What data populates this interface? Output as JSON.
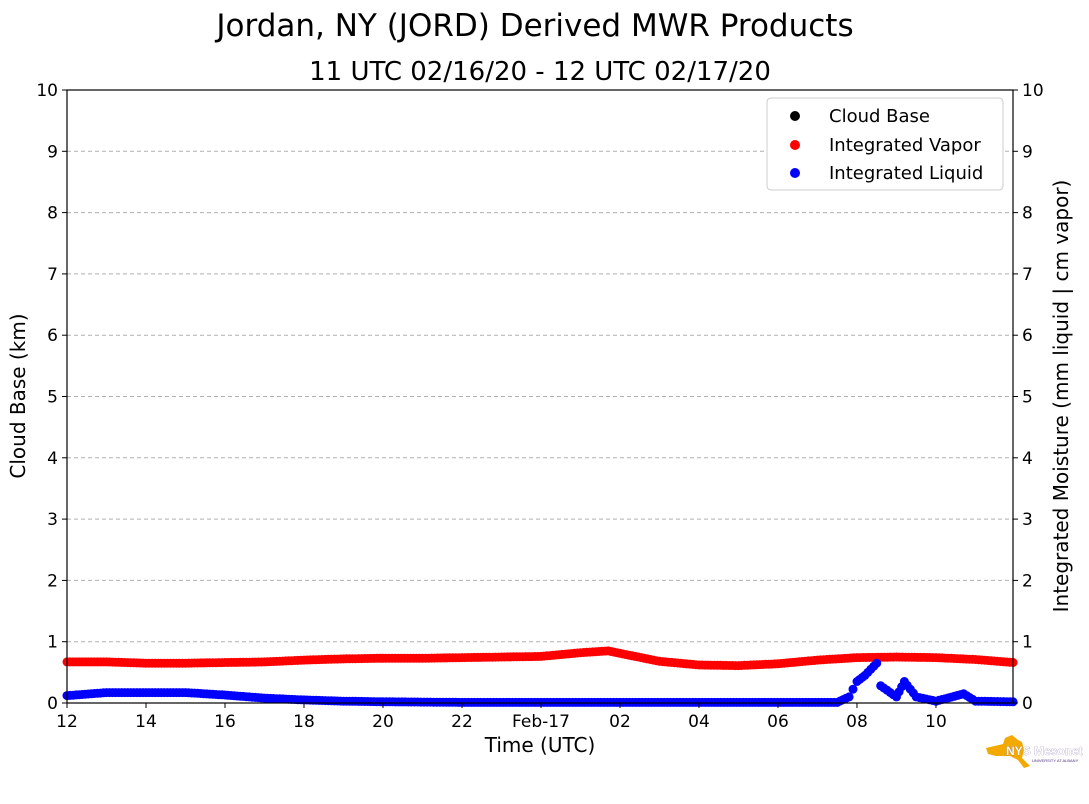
{
  "chart_data": {
    "type": "scatter",
    "title": "Jordan, NY (JORD) Derived MWR Products",
    "subtitle": "11 UTC 02/16/20 - 12 UTC 02/17/20",
    "xlabel": "Time (UTC)",
    "ylabel_left": "Cloud Base (km)",
    "ylabel_right": "Integrated Moisture (mm liquid | cm vapor)",
    "xlim_hours": [
      12,
      35.95
    ],
    "ylim": [
      0,
      10
    ],
    "grid": "horizontal dashed",
    "legend_position": "top-right",
    "x_ticks": [
      {
        "hour": 12,
        "label": "12"
      },
      {
        "hour": 14,
        "label": "14"
      },
      {
        "hour": 16,
        "label": "16"
      },
      {
        "hour": 18,
        "label": "18"
      },
      {
        "hour": 20,
        "label": "20"
      },
      {
        "hour": 22,
        "label": "22"
      },
      {
        "hour": 24,
        "label": "Feb-17"
      },
      {
        "hour": 26,
        "label": "02"
      },
      {
        "hour": 28,
        "label": "04"
      },
      {
        "hour": 30,
        "label": "06"
      },
      {
        "hour": 32,
        "label": "08"
      },
      {
        "hour": 34,
        "label": "10"
      }
    ],
    "y_ticks": [
      "0",
      "1",
      "2",
      "3",
      "4",
      "5",
      "6",
      "7",
      "8",
      "9",
      "10"
    ],
    "series": [
      {
        "name": "Cloud Base",
        "color": "#000000",
        "points": []
      },
      {
        "name": "Integrated Vapor",
        "color": "#ff0000",
        "points": [
          [
            12,
            0.67
          ],
          [
            13,
            0.67
          ],
          [
            14,
            0.65
          ],
          [
            15,
            0.65
          ],
          [
            16,
            0.66
          ],
          [
            17,
            0.67
          ],
          [
            18,
            0.7
          ],
          [
            19,
            0.72
          ],
          [
            20,
            0.73
          ],
          [
            21,
            0.73
          ],
          [
            22,
            0.74
          ],
          [
            23,
            0.75
          ],
          [
            24,
            0.76
          ],
          [
            25,
            0.82
          ],
          [
            25.7,
            0.85
          ],
          [
            26,
            0.81
          ],
          [
            27,
            0.68
          ],
          [
            28,
            0.62
          ],
          [
            29,
            0.61
          ],
          [
            30,
            0.64
          ],
          [
            31,
            0.7
          ],
          [
            32,
            0.74
          ],
          [
            33,
            0.75
          ],
          [
            34,
            0.74
          ],
          [
            35,
            0.71
          ],
          [
            35.95,
            0.66
          ]
        ]
      },
      {
        "name": "Integrated Liquid",
        "color": "#0000ff",
        "points": [
          [
            12,
            0.12
          ],
          [
            13,
            0.17
          ],
          [
            14,
            0.17
          ],
          [
            15,
            0.17
          ],
          [
            16,
            0.13
          ],
          [
            17,
            0.08
          ],
          [
            18,
            0.05
          ],
          [
            19,
            0.03
          ],
          [
            20,
            0.02
          ],
          [
            22,
            0.01
          ],
          [
            24,
            0.01
          ],
          [
            28,
            0.01
          ],
          [
            31.5,
            0.01
          ],
          [
            31.8,
            0.1
          ],
          [
            32,
            0.35
          ],
          [
            32.2,
            0.45
          ],
          [
            32.5,
            0.65
          ],
          [
            32.6,
            0.28
          ],
          [
            33,
            0.1
          ],
          [
            33.2,
            0.35
          ],
          [
            33.5,
            0.1
          ],
          [
            34,
            0.03
          ],
          [
            34.7,
            0.15
          ],
          [
            35,
            0.03
          ],
          [
            35.95,
            0.02
          ]
        ]
      }
    ]
  },
  "logo": {
    "text": "NYS Mesonet",
    "sub": "UNIVERSITY AT ALBANY"
  }
}
